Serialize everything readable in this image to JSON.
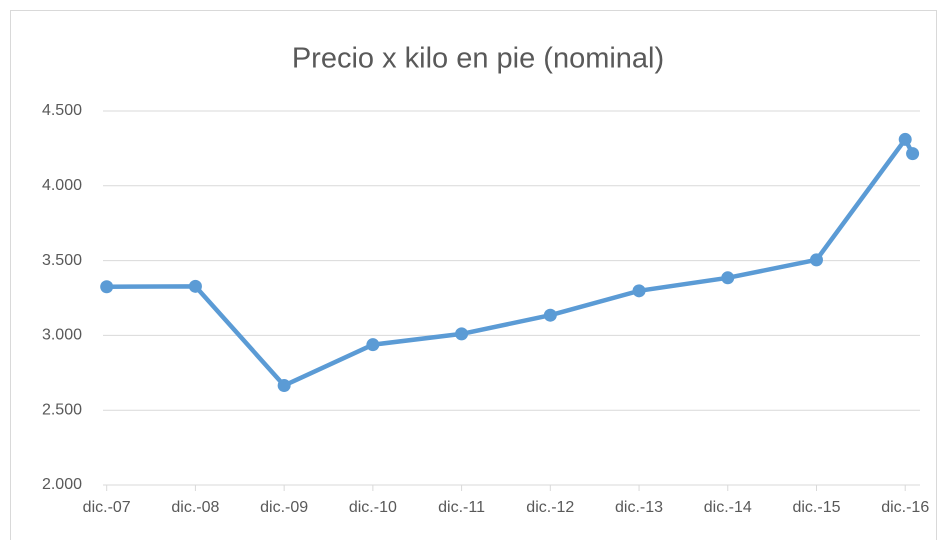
{
  "chart_data": {
    "type": "line",
    "title": "Precio x kilo en pie (nominal)",
    "x": [
      0,
      12,
      24,
      36,
      48,
      60,
      72,
      84,
      96,
      108,
      109
    ],
    "series": [
      {
        "name": "Precio x kilo en pie",
        "color": "#5b9bd5",
        "values": [
          3325,
          3328,
          2665,
          2938,
          3010,
          3135,
          3298,
          3385,
          3505,
          4310,
          4215
        ]
      }
    ],
    "xlim": [
      -0.5,
      110
    ],
    "xticks": [
      {
        "value": 0,
        "label": "dic.-07"
      },
      {
        "value": 12,
        "label": "dic.-08"
      },
      {
        "value": 24,
        "label": "dic.-09"
      },
      {
        "value": 36,
        "label": "dic.-10"
      },
      {
        "value": 48,
        "label": "dic.-11"
      },
      {
        "value": 60,
        "label": "dic.-12"
      },
      {
        "value": 72,
        "label": "dic.-13"
      },
      {
        "value": 84,
        "label": "dic.-14"
      },
      {
        "value": 96,
        "label": "dic.-15"
      },
      {
        "value": 108,
        "label": "dic.-16"
      }
    ],
    "ylim": [
      2000,
      4500
    ],
    "yticks": [
      {
        "value": 2000,
        "label": "2.000"
      },
      {
        "value": 2500,
        "label": "2.500"
      },
      {
        "value": 3000,
        "label": "3.000"
      },
      {
        "value": 3500,
        "label": "3.500"
      },
      {
        "value": 4000,
        "label": "4.000"
      },
      {
        "value": 4500,
        "label": "4.500"
      }
    ],
    "grid": true
  }
}
